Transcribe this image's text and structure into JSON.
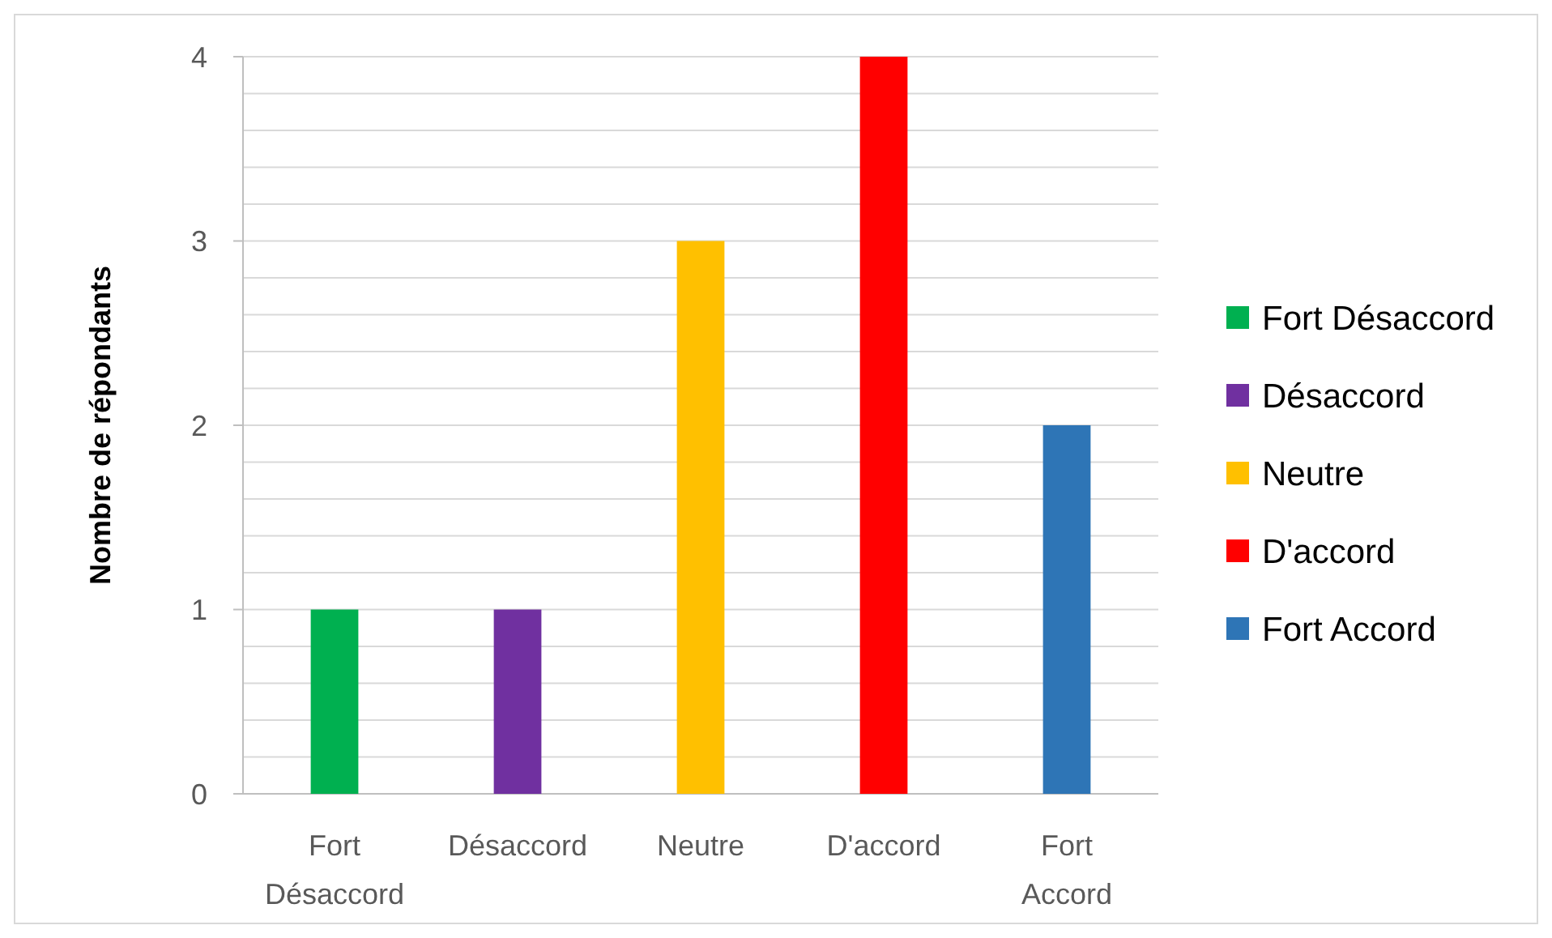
{
  "chart_data": {
    "type": "bar",
    "ylabel": "Nombre de répondants",
    "categories": [
      "Fort Désaccord",
      "Désaccord",
      "Neutre",
      "D'accord",
      "Fort Accord"
    ],
    "series": [
      {
        "name": "Fort Désaccord",
        "color": "#00b050",
        "values": [
          1,
          null,
          null,
          null,
          null
        ]
      },
      {
        "name": "Désaccord",
        "color": "#7030a0",
        "values": [
          null,
          1,
          null,
          null,
          null
        ]
      },
      {
        "name": "Neutre",
        "color": "#ffc000",
        "values": [
          null,
          null,
          3,
          null,
          null
        ]
      },
      {
        "name": "D'accord",
        "color": "#ff0000",
        "values": [
          null,
          null,
          null,
          4,
          null
        ]
      },
      {
        "name": "Fort Accord",
        "color": "#2e75b6",
        "values": [
          null,
          null,
          null,
          null,
          2
        ]
      }
    ],
    "stacked": true,
    "ylim": [
      0,
      4
    ],
    "yticks": [
      0,
      {
        "value": 0.2,
        "label": null
      },
      {
        "value": 0.4,
        "label": null
      },
      {
        "value": 0.6,
        "label": null
      },
      {
        "value": 0.8,
        "label": null
      },
      1,
      {
        "value": 1.2,
        "label": null
      },
      {
        "value": 1.4,
        "label": null
      },
      {
        "value": 1.6,
        "label": null
      },
      {
        "value": 1.8,
        "label": null
      },
      2,
      {
        "value": 2.2,
        "label": null
      },
      {
        "value": 2.4,
        "label": null
      },
      {
        "value": 2.6,
        "label": null
      },
      {
        "value": 2.8,
        "label": null
      },
      3,
      {
        "value": 3.2,
        "label": null
      },
      {
        "value": 3.4,
        "label": null
      },
      {
        "value": 3.6,
        "label": null
      },
      {
        "value": 3.8,
        "label": null
      },
      4
    ],
    "grid": true,
    "legend": "right"
  }
}
